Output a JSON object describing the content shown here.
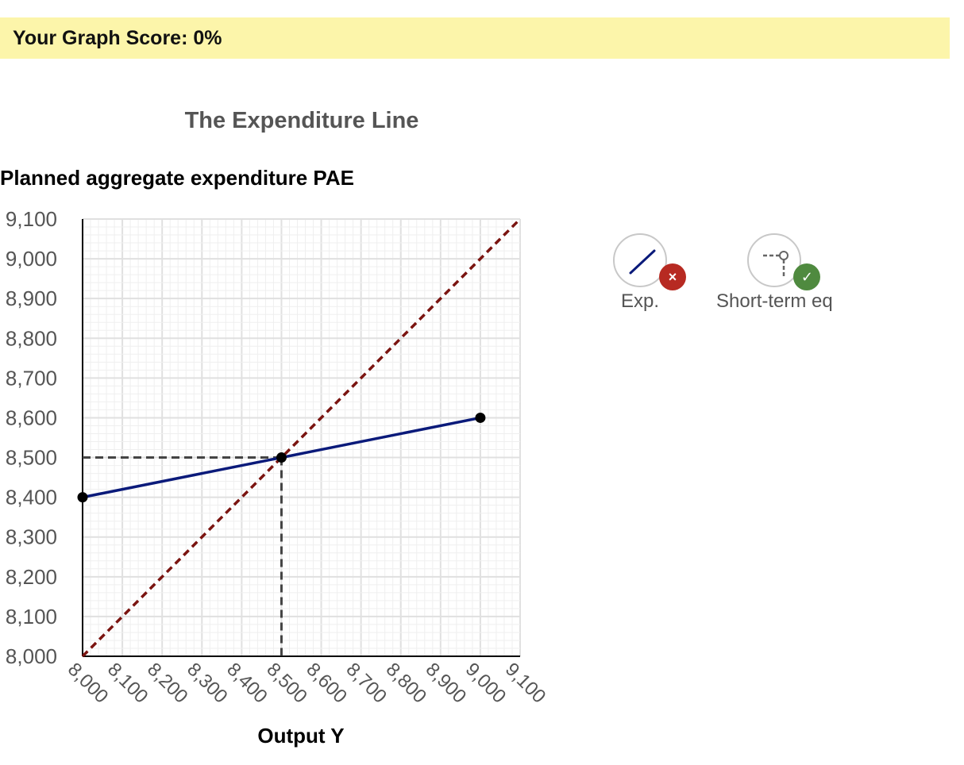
{
  "score": {
    "text": "Your Graph Score: 0%"
  },
  "chart_data": {
    "type": "line",
    "title": "The Expenditure Line",
    "xlabel": "Output Y",
    "ylabel": "Planned aggregate expenditure PAE",
    "xlim": [
      8000,
      9100
    ],
    "ylim": [
      8000,
      9100
    ],
    "x_ticks": [
      "8,000",
      "8,100",
      "8,200",
      "8,300",
      "8,400",
      "8,500",
      "8,600",
      "8,700",
      "8,800",
      "8,900",
      "9,000",
      "9,100"
    ],
    "y_ticks": [
      "8,000",
      "8,100",
      "8,200",
      "8,300",
      "8,400",
      "8,500",
      "8,600",
      "8,700",
      "8,800",
      "8,900",
      "9,000",
      "9,100"
    ],
    "grid": true,
    "minor_grid_step": 20,
    "series": [
      {
        "style": "dashed",
        "color": "#7a1410",
        "points": [
          [
            8000,
            8000
          ],
          [
            9100,
            9100
          ]
        ]
      },
      {
        "style": "solid",
        "color": "#0a1a7a",
        "points": [
          [
            8000,
            8400
          ],
          [
            8500,
            8500
          ],
          [
            9000,
            8600
          ]
        ],
        "markers": true
      }
    ],
    "equilibrium": {
      "x": 8500,
      "y": 8500,
      "color": "#444444"
    }
  },
  "tools": [
    {
      "label": "Exp.",
      "icon": "line-icon",
      "status": "incorrect",
      "status_icon": "×",
      "badge_color": "#b72a22"
    },
    {
      "label": "Short-term eq",
      "icon": "equilibrium-point-icon",
      "status": "correct",
      "status_icon": "✓",
      "badge_color": "#4f8a3f"
    }
  ]
}
